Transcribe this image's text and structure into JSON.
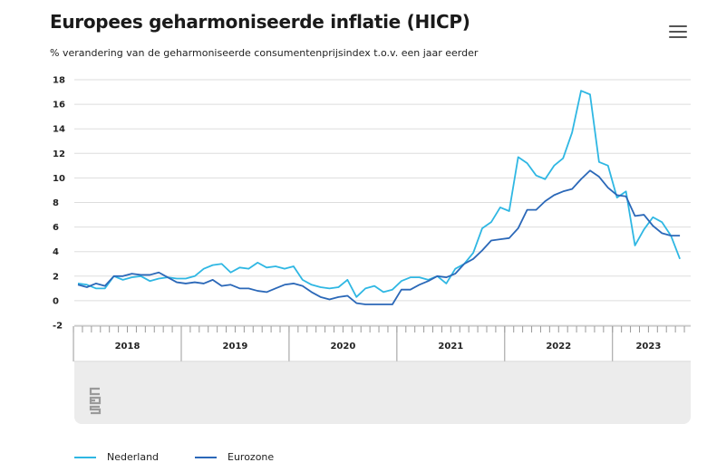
{
  "title": "Europees geharmoniseerde inflatie (HICP)",
  "subtitle": "% verandering van de geharmoniseerde consumentenprijsindex t.o.v. een jaar eerder",
  "icons": {
    "menu": "hamburger-menu-icon",
    "logo": "cbs-logo-icon"
  },
  "colors": {
    "nederland": "#2fb7e3",
    "eurozone": "#2b68b8",
    "grid": "#dddddd",
    "navigator": "#ececec"
  },
  "chart_data": {
    "type": "line",
    "ylim": [
      -2,
      18
    ],
    "yticks": [
      -2,
      0,
      2,
      4,
      6,
      8,
      10,
      12,
      14,
      16,
      18
    ],
    "ytick_labels": [
      "-2",
      "0",
      "2",
      "4",
      "6",
      "8",
      "10",
      "12",
      "14",
      "16",
      "18"
    ],
    "years": [
      "2018",
      "2019",
      "2020",
      "2021",
      "2022",
      "2023"
    ],
    "x": [
      "2018-01",
      "2018-02",
      "2018-03",
      "2018-04",
      "2018-05",
      "2018-06",
      "2018-07",
      "2018-08",
      "2018-09",
      "2018-10",
      "2018-11",
      "2018-12",
      "2019-01",
      "2019-02",
      "2019-03",
      "2019-04",
      "2019-05",
      "2019-06",
      "2019-07",
      "2019-08",
      "2019-09",
      "2019-10",
      "2019-11",
      "2019-12",
      "2020-01",
      "2020-02",
      "2020-03",
      "2020-04",
      "2020-05",
      "2020-06",
      "2020-07",
      "2020-08",
      "2020-09",
      "2020-10",
      "2020-11",
      "2020-12",
      "2021-01",
      "2021-02",
      "2021-03",
      "2021-04",
      "2021-05",
      "2021-06",
      "2021-07",
      "2021-08",
      "2021-09",
      "2021-10",
      "2021-11",
      "2021-12",
      "2022-01",
      "2022-02",
      "2022-03",
      "2022-04",
      "2022-05",
      "2022-06",
      "2022-07",
      "2022-08",
      "2022-09",
      "2022-10",
      "2022-11",
      "2022-12",
      "2023-01",
      "2023-02",
      "2023-03",
      "2023-04",
      "2023-05",
      "2023-06",
      "2023-07",
      "2023-08"
    ],
    "series": [
      {
        "name": "Nederland",
        "values": [
          1.4,
          1.3,
          1.0,
          1.0,
          2.0,
          1.7,
          1.9,
          2.0,
          1.6,
          1.8,
          1.9,
          1.8,
          1.8,
          2.0,
          2.6,
          2.9,
          3.0,
          2.3,
          2.7,
          2.6,
          3.1,
          2.7,
          2.8,
          2.6,
          2.8,
          1.7,
          1.3,
          1.1,
          1.0,
          1.1,
          1.7,
          0.3,
          1.0,
          1.2,
          0.7,
          0.9,
          1.6,
          1.9,
          1.9,
          1.7,
          2.0,
          1.4,
          2.6,
          3.0,
          3.9,
          5.9,
          6.4,
          7.6,
          7.3,
          11.7,
          11.2,
          10.2,
          9.9,
          11.0,
          11.6,
          13.7,
          17.1,
          16.8,
          11.3,
          11.0,
          8.4,
          8.9,
          4.5,
          5.8,
          6.8,
          6.4,
          5.3,
          3.4
        ]
      },
      {
        "name": "Eurozone",
        "values": [
          1.3,
          1.1,
          1.4,
          1.2,
          2.0,
          2.0,
          2.2,
          2.1,
          2.1,
          2.3,
          1.9,
          1.5,
          1.4,
          1.5,
          1.4,
          1.7,
          1.2,
          1.3,
          1.0,
          1.0,
          0.8,
          0.7,
          1.0,
          1.3,
          1.4,
          1.2,
          0.7,
          0.3,
          0.1,
          0.3,
          0.4,
          -0.2,
          -0.3,
          -0.3,
          -0.3,
          -0.3,
          0.9,
          0.9,
          1.3,
          1.6,
          2.0,
          1.9,
          2.2,
          3.0,
          3.4,
          4.1,
          4.9,
          5.0,
          5.1,
          5.9,
          7.4,
          7.4,
          8.1,
          8.6,
          8.9,
          9.1,
          9.9,
          10.6,
          10.1,
          9.2,
          8.6,
          8.5,
          6.9,
          7.0,
          6.1,
          5.5,
          5.3,
          5.3
        ]
      }
    ]
  }
}
